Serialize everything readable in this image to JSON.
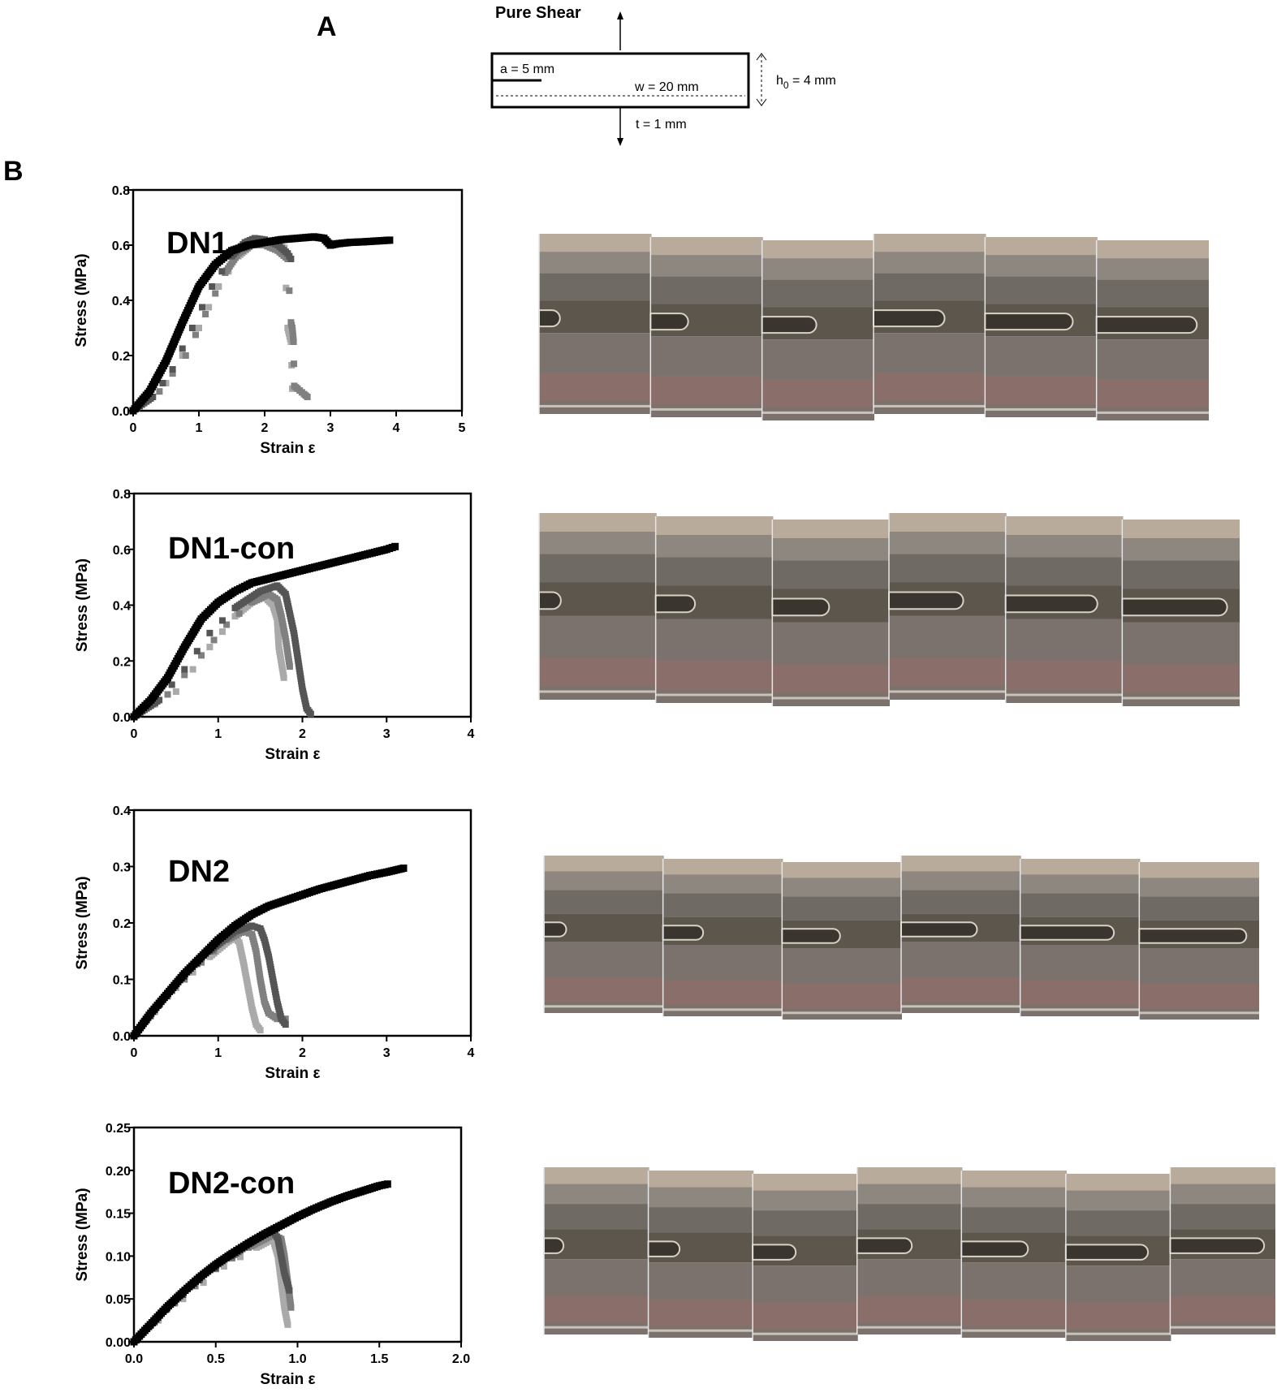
{
  "panels": {
    "a": "A",
    "b": "B"
  },
  "schematic": {
    "title": "Pure Shear",
    "crack": "a = 5 mm",
    "width": "w = 20 mm",
    "height_main": "h",
    "height_sub": "0",
    "height_rest": " = 4 mm",
    "thickness": "t = 1 mm"
  },
  "colors": {
    "black_series": "#000000",
    "dark_gray_series": "#555555",
    "mid_gray_series": "#808080",
    "light_gray_series": "#aaaaaa"
  },
  "photo_strips": [
    {
      "chart": "DN1",
      "frames": 6,
      "crack_progress": [
        0.05,
        0.25,
        0.45,
        0.65,
        0.85,
        1.0
      ]
    },
    {
      "chart": "DN1-con",
      "frames": 6,
      "crack_progress": [
        0.05,
        0.25,
        0.45,
        0.65,
        0.85,
        1.0
      ]
    },
    {
      "chart": "DN2",
      "frames": 6,
      "crack_progress": [
        0.05,
        0.25,
        0.45,
        0.65,
        0.85,
        1.0
      ]
    },
    {
      "chart": "DN2-con",
      "frames": 7,
      "crack_progress": [
        0.05,
        0.2,
        0.35,
        0.5,
        0.65,
        0.85,
        1.0
      ]
    }
  ],
  "chart_data": [
    {
      "type": "scatter",
      "title": "DN1",
      "xlabel": "Strain  ε",
      "ylabel": "Stress (MPa)",
      "xlim": [
        0,
        5
      ],
      "ylim": [
        0,
        0.8
      ],
      "xticks": [
        "0",
        "1",
        "2",
        "3",
        "4",
        "5"
      ],
      "yticks": [
        "0.0",
        "0.2",
        "0.4",
        "0.6",
        "0.8"
      ],
      "grid": false,
      "legend": "none",
      "series": [
        {
          "color": "#000000",
          "x": [
            0,
            0.25,
            0.5,
            0.75,
            1.0,
            1.25,
            1.5,
            1.75,
            2.0,
            2.25,
            2.5,
            2.75,
            2.9,
            3.0,
            3.1,
            3.3,
            3.5,
            3.7,
            3.9
          ],
          "y": [
            0,
            0.07,
            0.18,
            0.32,
            0.45,
            0.53,
            0.58,
            0.6,
            0.61,
            0.62,
            0.625,
            0.63,
            0.625,
            0.6,
            0.605,
            0.61,
            0.612,
            0.615,
            0.618
          ]
        },
        {
          "color": "#555555",
          "x": [
            0,
            0.3,
            0.6,
            0.9,
            1.2,
            1.5,
            1.7,
            1.85,
            2.0,
            2.2,
            2.35,
            2.4
          ],
          "y": [
            0,
            0.05,
            0.15,
            0.3,
            0.45,
            0.56,
            0.61,
            0.625,
            0.62,
            0.6,
            0.57,
            0.55
          ]
        },
        {
          "color": "#808080",
          "x": [
            0,
            0.4,
            0.8,
            1.1,
            1.4,
            1.6,
            1.8,
            2.0,
            2.2,
            2.35,
            2.4,
            2.42,
            2.44,
            2.45,
            2.5,
            2.6,
            2.65
          ],
          "y": [
            0,
            0.07,
            0.2,
            0.35,
            0.5,
            0.57,
            0.6,
            0.6,
            0.58,
            0.55,
            0.32,
            0.3,
            0.25,
            0.09,
            0.08,
            0.06,
            0.05
          ]
        },
        {
          "color": "#aaaaaa",
          "x": [
            0,
            0.5,
            1.0,
            1.3,
            1.6,
            1.8,
            2.0,
            2.2,
            2.3,
            2.35,
            2.4,
            2.42
          ],
          "y": [
            0,
            0.1,
            0.3,
            0.45,
            0.56,
            0.6,
            0.61,
            0.6,
            0.59,
            0.3,
            0.25,
            0.08
          ]
        }
      ]
    },
    {
      "type": "scatter",
      "title": "DN1-con",
      "xlabel": "Strain  ε",
      "ylabel": "Stress (MPa)",
      "xlim": [
        0,
        4
      ],
      "ylim": [
        0,
        0.8
      ],
      "xticks": [
        "0",
        "1",
        "2",
        "3",
        "4"
      ],
      "yticks": [
        "0.0",
        "0.2",
        "0.4",
        "0.6",
        "0.8"
      ],
      "grid": false,
      "legend": "none",
      "series": [
        {
          "color": "#000000",
          "x": [
            0,
            0.2,
            0.4,
            0.6,
            0.8,
            1.0,
            1.2,
            1.4,
            1.6,
            1.8,
            2.0,
            2.2,
            2.4,
            2.6,
            2.8,
            3.0,
            3.1
          ],
          "y": [
            0,
            0.06,
            0.14,
            0.25,
            0.35,
            0.41,
            0.45,
            0.48,
            0.495,
            0.51,
            0.525,
            0.54,
            0.555,
            0.57,
            0.585,
            0.6,
            0.61
          ]
        },
        {
          "color": "#555555",
          "x": [
            0,
            0.3,
            0.6,
            0.9,
            1.2,
            1.5,
            1.7,
            1.8,
            1.85,
            1.9,
            1.95,
            2.0,
            2.05,
            2.1
          ],
          "y": [
            0,
            0.06,
            0.17,
            0.3,
            0.39,
            0.45,
            0.47,
            0.44,
            0.37,
            0.3,
            0.2,
            0.1,
            0.03,
            0.01
          ]
        },
        {
          "color": "#808080",
          "x": [
            0,
            0.4,
            0.8,
            1.1,
            1.4,
            1.6,
            1.7,
            1.75,
            1.8,
            1.85
          ],
          "y": [
            0,
            0.08,
            0.22,
            0.33,
            0.41,
            0.44,
            0.42,
            0.36,
            0.28,
            0.18
          ]
        },
        {
          "color": "#aaaaaa",
          "x": [
            0,
            0.5,
            0.9,
            1.2,
            1.4,
            1.55,
            1.65,
            1.7,
            1.72,
            1.78
          ],
          "y": [
            0,
            0.09,
            0.25,
            0.36,
            0.41,
            0.43,
            0.4,
            0.35,
            0.25,
            0.14
          ]
        }
      ]
    },
    {
      "type": "scatter",
      "title": "DN2",
      "xlabel": "Strain  ε",
      "ylabel": "Stress (MPa)",
      "xlim": [
        0,
        4
      ],
      "ylim": [
        0,
        0.4
      ],
      "xticks": [
        "0",
        "1",
        "2",
        "3",
        "4"
      ],
      "yticks": [
        "0.0",
        "0.1",
        "0.2",
        "0.3",
        "0.4"
      ],
      "grid": false,
      "legend": "none",
      "series": [
        {
          "color": "#000000",
          "x": [
            0,
            0.2,
            0.4,
            0.6,
            0.8,
            1.0,
            1.2,
            1.4,
            1.6,
            1.8,
            2.0,
            2.2,
            2.4,
            2.6,
            2.8,
            3.0,
            3.2
          ],
          "y": [
            0,
            0.04,
            0.075,
            0.11,
            0.14,
            0.17,
            0.195,
            0.215,
            0.23,
            0.24,
            0.25,
            0.26,
            0.268,
            0.276,
            0.284,
            0.29,
            0.297
          ]
        },
        {
          "color": "#555555",
          "x": [
            0,
            0.3,
            0.6,
            0.9,
            1.2,
            1.4,
            1.5,
            1.55,
            1.6,
            1.65,
            1.7,
            1.75,
            1.8
          ],
          "y": [
            0,
            0.055,
            0.105,
            0.15,
            0.185,
            0.195,
            0.19,
            0.17,
            0.14,
            0.1,
            0.06,
            0.03,
            0.02
          ]
        },
        {
          "color": "#808080",
          "x": [
            0,
            0.4,
            0.8,
            1.1,
            1.3,
            1.4,
            1.45,
            1.5,
            1.55,
            1.6,
            1.7,
            1.8
          ],
          "y": [
            0,
            0.07,
            0.13,
            0.17,
            0.185,
            0.18,
            0.15,
            0.1,
            0.06,
            0.04,
            0.03,
            0.03
          ]
        },
        {
          "color": "#aaaaaa",
          "x": [
            0,
            0.5,
            0.9,
            1.1,
            1.2,
            1.25,
            1.3,
            1.35,
            1.4,
            1.45,
            1.5
          ],
          "y": [
            0,
            0.085,
            0.14,
            0.165,
            0.175,
            0.165,
            0.13,
            0.09,
            0.05,
            0.02,
            0.01
          ]
        }
      ]
    },
    {
      "type": "scatter",
      "title": "DN2-con",
      "xlabel": "Strain  ε",
      "ylabel": "Stress (MPa)",
      "xlim": [
        0,
        2.0
      ],
      "ylim": [
        0,
        0.25
      ],
      "xticks": [
        "0.0",
        "0.5",
        "1.0",
        "1.5",
        "2.0"
      ],
      "yticks": [
        "0.00",
        "0.05",
        "0.10",
        "0.15",
        "0.20",
        "0.25"
      ],
      "grid": false,
      "legend": "none",
      "series": [
        {
          "color": "#000000",
          "x": [
            0,
            0.1,
            0.2,
            0.3,
            0.4,
            0.5,
            0.6,
            0.7,
            0.8,
            0.9,
            1.0,
            1.1,
            1.2,
            1.3,
            1.4,
            1.5,
            1.55
          ],
          "y": [
            0,
            0.02,
            0.04,
            0.058,
            0.075,
            0.09,
            0.103,
            0.115,
            0.126,
            0.136,
            0.146,
            0.155,
            0.163,
            0.17,
            0.176,
            0.182,
            0.184
          ]
        },
        {
          "color": "#555555",
          "x": [
            0,
            0.2,
            0.4,
            0.6,
            0.75,
            0.85,
            0.88,
            0.9,
            0.92,
            0.95
          ],
          "y": [
            0,
            0.038,
            0.072,
            0.1,
            0.12,
            0.13,
            0.12,
            0.1,
            0.08,
            0.06
          ]
        },
        {
          "color": "#808080",
          "x": [
            0,
            0.25,
            0.5,
            0.7,
            0.85,
            0.9,
            0.92,
            0.94,
            0.96
          ],
          "y": [
            0,
            0.045,
            0.085,
            0.11,
            0.125,
            0.12,
            0.1,
            0.07,
            0.04
          ]
        },
        {
          "color": "#aaaaaa",
          "x": [
            0,
            0.3,
            0.55,
            0.75,
            0.85,
            0.88,
            0.9,
            0.92,
            0.94
          ],
          "y": [
            0,
            0.05,
            0.088,
            0.11,
            0.12,
            0.1,
            0.07,
            0.04,
            0.02
          ]
        }
      ]
    }
  ]
}
